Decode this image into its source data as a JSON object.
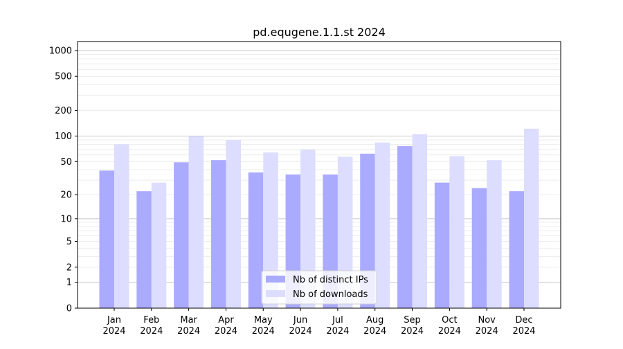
{
  "chart_data": {
    "type": "bar",
    "title": "pd.equgene.1.1.st 2024",
    "xlabel": "",
    "ylabel": "",
    "yscale": "log(1+y)",
    "ylim": [
      0,
      1200
    ],
    "yticks": [
      0,
      1,
      2,
      5,
      10,
      20,
      50,
      100,
      200,
      500,
      1000
    ],
    "grid": true,
    "legend_position": "bottom-center",
    "categories": [
      "Jan\n2024",
      "Feb\n2024",
      "Mar\n2024",
      "Apr\n2024",
      "May\n2024",
      "Jun\n2024",
      "Jul\n2024",
      "Aug\n2024",
      "Sep\n2024",
      "Oct\n2024",
      "Nov\n2024",
      "Dec\n2024"
    ],
    "series": [
      {
        "name": "Nb of distinct IPs",
        "color": "#aaaaff",
        "values": [
          39,
          22,
          49,
          52,
          37,
          35,
          35,
          62,
          76,
          28,
          24,
          22
        ]
      },
      {
        "name": "Nb of downloads",
        "color": "#ddddff",
        "values": [
          80,
          28,
          99,
          90,
          64,
          69,
          57,
          84,
          105,
          58,
          52,
          122
        ]
      }
    ]
  }
}
